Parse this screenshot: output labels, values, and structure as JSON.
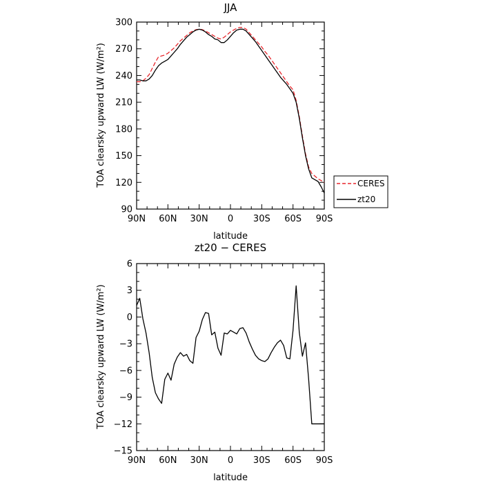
{
  "chart_data": [
    {
      "type": "line",
      "title": "JJA",
      "xlabel": "latitude",
      "ylabel": "TOA clearsky upward LW (W/m²)",
      "xlim": [
        90,
        -90
      ],
      "ylim": [
        90,
        300
      ],
      "xticks": [
        90,
        60,
        30,
        0,
        -30,
        -60,
        -90
      ],
      "xticklabels": [
        "90N",
        "60N",
        "30N",
        "0",
        "30S",
        "60S",
        "90S"
      ],
      "yticks": [
        90,
        120,
        150,
        180,
        210,
        240,
        270,
        300
      ],
      "yticklabels": [
        "90",
        "120",
        "150",
        "180",
        "210",
        "240",
        "270",
        "300"
      ],
      "legend": {
        "position": "right"
      },
      "series": [
        {
          "name": "CERES",
          "style": "dashed",
          "color": "#e8262b",
          "x": [
            90,
            87,
            84,
            81,
            78,
            75,
            72,
            69,
            66,
            63,
            60,
            57,
            54,
            51,
            48,
            45,
            42,
            39,
            36,
            33,
            30,
            27,
            24,
            21,
            18,
            15,
            12,
            9,
            6,
            3,
            0,
            -3,
            -6,
            -9,
            -12,
            -15,
            -18,
            -21,
            -24,
            -27,
            -30,
            -33,
            -36,
            -39,
            -42,
            -45,
            -48,
            -51,
            -54,
            -57,
            -60,
            -63,
            -66,
            -69,
            -72,
            -75,
            -78,
            -81,
            -84,
            -87,
            -90
          ],
          "y": [
            233,
            233,
            234,
            237,
            241,
            248,
            255,
            261,
            262,
            263,
            265,
            268,
            271,
            275,
            279,
            282,
            285,
            288,
            290,
            291.5,
            292,
            291.5,
            290,
            288,
            286,
            284,
            282,
            281,
            283,
            286,
            289,
            291,
            293,
            294,
            294,
            292,
            288,
            284,
            280,
            276,
            272,
            267,
            263,
            258,
            253,
            248,
            243,
            238,
            233,
            228,
            224,
            212,
            194,
            172,
            152,
            137,
            130,
            127,
            124,
            122,
            120
          ]
        },
        {
          "name": "zt20",
          "style": "solid",
          "color": "#000000",
          "x": [
            90,
            87,
            84,
            81,
            78,
            75,
            72,
            69,
            66,
            63,
            60,
            57,
            54,
            51,
            48,
            45,
            42,
            39,
            36,
            33,
            30,
            27,
            24,
            21,
            18,
            15,
            12,
            9,
            6,
            3,
            0,
            -3,
            -6,
            -9,
            -12,
            -15,
            -18,
            -21,
            -24,
            -27,
            -30,
            -33,
            -36,
            -39,
            -42,
            -45,
            -48,
            -51,
            -54,
            -57,
            -60,
            -63,
            -66,
            -69,
            -72,
            -75,
            -78,
            -81,
            -84,
            -87,
            -90
          ],
          "y": [
            235,
            235,
            234,
            234,
            236,
            240,
            246,
            251,
            254,
            256,
            258,
            262,
            266,
            270,
            275,
            279,
            283,
            286,
            289,
            291,
            292,
            291,
            289,
            286,
            284,
            281,
            280,
            277,
            277,
            280,
            284,
            288,
            291,
            292,
            292,
            290,
            286,
            282,
            278,
            273,
            268,
            263,
            258,
            253,
            248,
            243,
            238,
            234,
            230,
            225,
            220,
            210,
            192,
            170,
            150,
            135,
            125,
            123,
            121,
            115,
            108
          ]
        }
      ]
    },
    {
      "type": "line",
      "title": "zt20 − CERES",
      "xlabel": "latitude",
      "ylabel": "TOA clearsky upward LW (W/m²)",
      "xlim": [
        90,
        -90
      ],
      "ylim": [
        -15,
        6
      ],
      "xticks": [
        90,
        60,
        30,
        0,
        -30,
        -60,
        -90
      ],
      "xticklabels": [
        "90N",
        "60N",
        "30N",
        "0",
        "30S",
        "60S",
        "90S"
      ],
      "yticks": [
        -15,
        -12,
        -9,
        -6,
        -3,
        0,
        3,
        6
      ],
      "yticklabels": [
        "−15",
        "−12",
        "−9",
        "−6",
        "−3",
        "0",
        "3",
        "6"
      ],
      "series": [
        {
          "name": "",
          "style": "solid",
          "color": "#000000",
          "x": [
            90,
            87,
            84,
            81,
            78,
            75,
            72,
            69,
            66,
            63,
            60,
            57,
            54,
            51,
            48,
            45,
            42,
            39,
            36,
            33,
            30,
            27,
            24,
            21,
            18,
            15,
            12,
            9,
            6,
            3,
            0,
            -3,
            -6,
            -9,
            -12,
            -15,
            -18,
            -21,
            -24,
            -27,
            -30,
            -33,
            -36,
            -39,
            -42,
            -45,
            -48,
            -51,
            -54,
            -57,
            -60,
            -63,
            -66,
            -69,
            -72,
            -75,
            -78,
            -81,
            -84,
            -87,
            -90
          ],
          "y": [
            1.3,
            2.1,
            -0.2,
            -1.8,
            -4.0,
            -6.8,
            -8.5,
            -9.2,
            -9.7,
            -7.0,
            -6.3,
            -7.1,
            -5.3,
            -4.5,
            -4.0,
            -4.4,
            -4.2,
            -4.9,
            -5.2,
            -2.3,
            -1.6,
            -0.3,
            0.5,
            0.4,
            -2.0,
            -1.7,
            -3.5,
            -4.3,
            -1.8,
            -1.9,
            -1.5,
            -1.7,
            -1.9,
            -1.3,
            -1.2,
            -1.8,
            -2.8,
            -3.6,
            -4.3,
            -4.7,
            -4.9,
            -5.0,
            -4.7,
            -4.0,
            -3.4,
            -2.9,
            -2.6,
            -3.2,
            -4.6,
            -4.7,
            -1.5,
            3.5,
            -1.7,
            -4.4,
            -2.9,
            -7.0,
            -12.0,
            -12.0,
            -12.0,
            -12.0,
            -12.0
          ]
        }
      ]
    }
  ]
}
